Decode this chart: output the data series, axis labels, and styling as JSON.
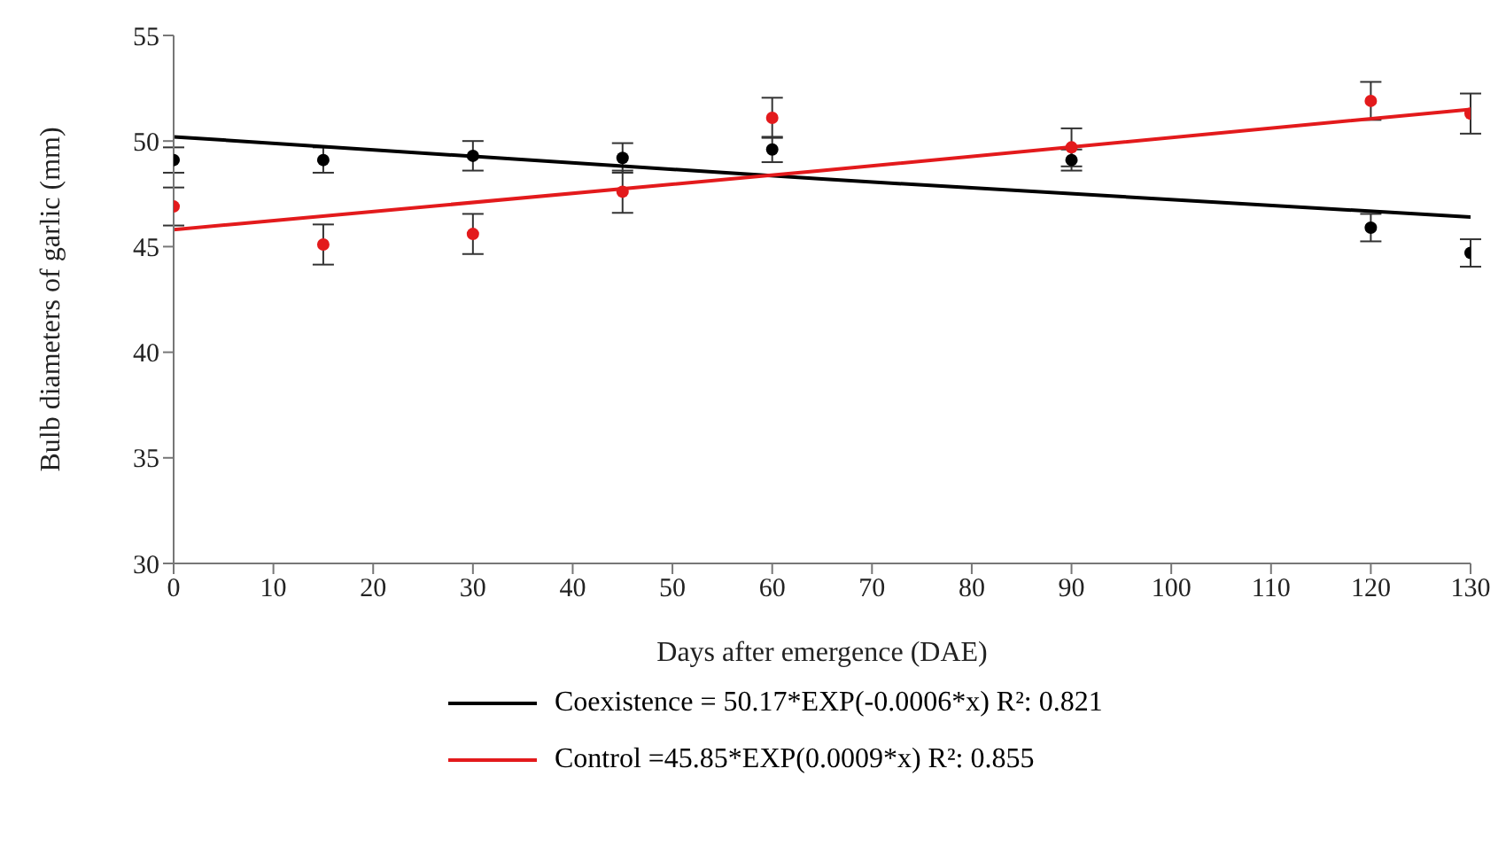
{
  "chart_data": {
    "type": "scatter",
    "xlabel": "Days after emergence (DAE)",
    "ylabel": "Bulb diameters of garlic (mm)",
    "xlim": [
      0,
      130
    ],
    "xticks": [
      0,
      10,
      20,
      30,
      40,
      50,
      60,
      70,
      80,
      90,
      100,
      110,
      120,
      130
    ],
    "ylim": [
      30,
      55
    ],
    "yticks": [
      30,
      35,
      40,
      45,
      50,
      55
    ],
    "x": [
      0,
      15,
      30,
      45,
      60,
      90,
      120,
      130
    ],
    "grid": false,
    "legend": "bottom",
    "marker": "circle",
    "series": [
      {
        "color": "#000000",
        "values": [
          49.1,
          49.1,
          49.3,
          49.2,
          49.6,
          49.1,
          45.9,
          44.7
        ],
        "errors": [
          0.6,
          0.6,
          0.7,
          0.7,
          0.6,
          0.5,
          0.65,
          0.65
        ]
      },
      {
        "color": "#e31a1c",
        "values": [
          46.9,
          45.1,
          45.6,
          47.6,
          51.1,
          49.7,
          51.9,
          51.3
        ],
        "errors": [
          0.9,
          0.95,
          0.95,
          1.0,
          0.95,
          0.9,
          0.9,
          0.95
        ]
      },
      {
        "type": "line",
        "name": "Coexistence = 50.17*EXP(-0.0006*x)  R²: 0.821",
        "color": "#000000",
        "x": [
          0,
          65,
          130
        ],
        "values": [
          50.2,
          48.2,
          46.4
        ],
        "marker": "none",
        "line_style": "solid"
      },
      {
        "type": "line",
        "name": "Control =45.85*EXP(0.0009*x) R²: 0.855",
        "color": "#e31a1c",
        "x": [
          0,
          65,
          130
        ],
        "values": [
          45.8,
          48.6,
          51.5
        ],
        "marker": "none",
        "line_style": "solid"
      }
    ]
  }
}
